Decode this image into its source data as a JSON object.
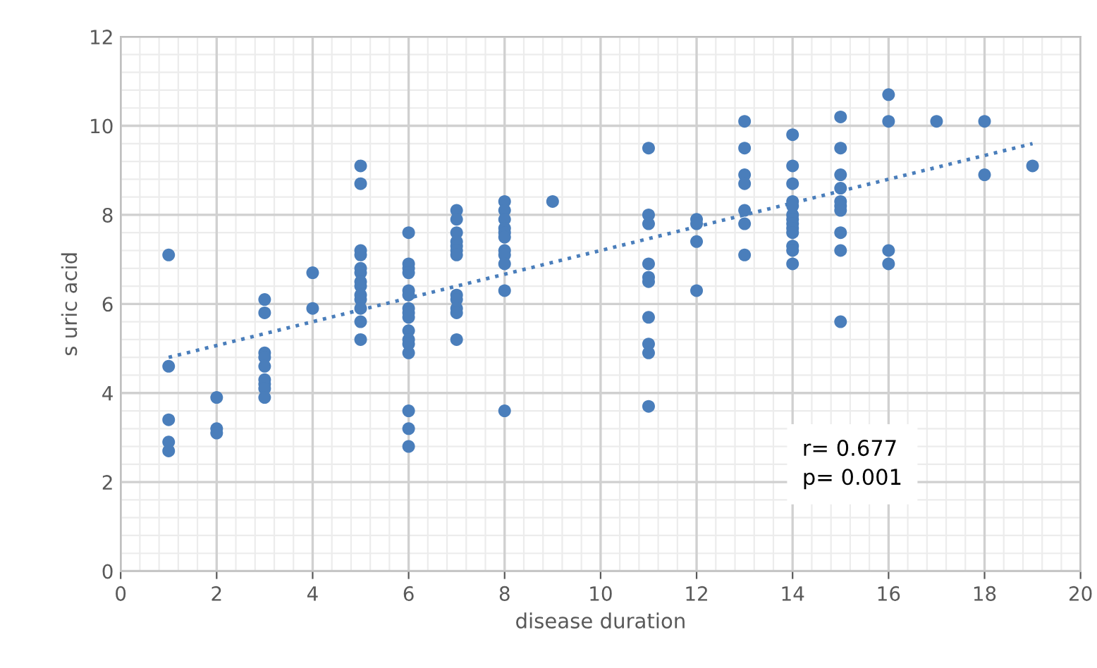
{
  "chart_data": {
    "type": "scatter",
    "xlabel": "disease duration",
    "ylabel": "s uric acid",
    "xlim": [
      0,
      20
    ],
    "xticks": [
      0,
      2,
      4,
      6,
      8,
      10,
      12,
      14,
      16,
      18,
      20
    ],
    "ylim": [
      0,
      12
    ],
    "yticks": [
      0,
      2,
      4,
      6,
      8,
      10,
      12
    ],
    "grid": true,
    "marker": "circle",
    "series": [
      {
        "color": "#4a7ebb",
        "x": [
          1,
          1,
          1,
          1,
          1,
          2,
          2,
          2,
          3,
          3,
          3,
          3,
          3,
          3,
          3,
          3,
          3,
          4,
          4,
          5,
          5,
          5,
          5,
          5,
          5,
          5,
          5,
          5,
          5,
          5,
          5,
          5,
          6,
          6,
          6,
          6,
          6,
          6,
          6,
          6,
          6,
          6,
          6,
          6,
          6,
          6,
          6,
          6,
          7,
          7,
          7,
          7,
          7,
          7,
          7,
          7,
          7,
          7,
          7,
          7,
          8,
          8,
          8,
          8,
          8,
          8,
          8,
          8,
          8,
          8,
          8,
          9,
          11,
          11,
          11,
          11,
          11,
          11,
          11,
          11,
          11,
          11,
          12,
          12,
          12,
          12,
          13,
          13,
          13,
          13,
          13,
          13,
          13,
          14,
          14,
          14,
          14,
          14,
          14,
          14,
          14,
          14,
          14,
          14,
          14,
          14,
          15,
          15,
          15,
          15,
          15,
          15,
          15,
          15,
          15,
          15,
          16,
          16,
          16,
          16,
          17,
          18,
          18,
          19
        ],
        "values": [
          7.1,
          4.6,
          3.4,
          2.9,
          2.7,
          3.9,
          3.2,
          3.1,
          6.1,
          5.8,
          4.9,
          4.8,
          4.6,
          4.3,
          4.2,
          4.1,
          3.9,
          6.7,
          5.9,
          9.1,
          8.7,
          7.2,
          7.1,
          6.8,
          6.7,
          6.5,
          6.4,
          6.2,
          6.1,
          5.9,
          5.6,
          5.2,
          7.6,
          6.9,
          6.8,
          6.7,
          6.3,
          6.2,
          5.9,
          5.8,
          5.7,
          5.4,
          5.2,
          5.1,
          4.9,
          3.6,
          3.2,
          2.8,
          8.1,
          7.9,
          7.6,
          7.4,
          7.3,
          7.2,
          7.1,
          6.2,
          6.1,
          5.9,
          5.8,
          5.2,
          8.3,
          8.1,
          7.9,
          7.7,
          7.6,
          7.5,
          7.2,
          7.1,
          6.9,
          6.3,
          3.6,
          8.3,
          9.5,
          8.0,
          7.8,
          6.9,
          6.6,
          6.5,
          5.7,
          5.1,
          4.9,
          3.7,
          7.9,
          7.8,
          7.4,
          6.3,
          10.1,
          9.5,
          8.9,
          8.7,
          8.1,
          7.8,
          7.1,
          9.8,
          9.1,
          8.7,
          8.3,
          8.2,
          8.0,
          7.9,
          7.8,
          7.7,
          7.6,
          7.3,
          7.2,
          6.9,
          10.2,
          9.5,
          8.9,
          8.6,
          8.3,
          8.2,
          8.1,
          7.6,
          7.2,
          5.6,
          10.7,
          10.1,
          7.2,
          6.9,
          10.1,
          10.1,
          8.9,
          9.1
        ]
      },
      {
        "type": "line",
        "color": "#4a7ebb",
        "line_style": "dotted",
        "marker": "none",
        "x": [
          1,
          19
        ],
        "values": [
          4.8,
          9.6
        ]
      }
    ],
    "annotations": [
      "r= 0.677\np= 0.001"
    ]
  }
}
